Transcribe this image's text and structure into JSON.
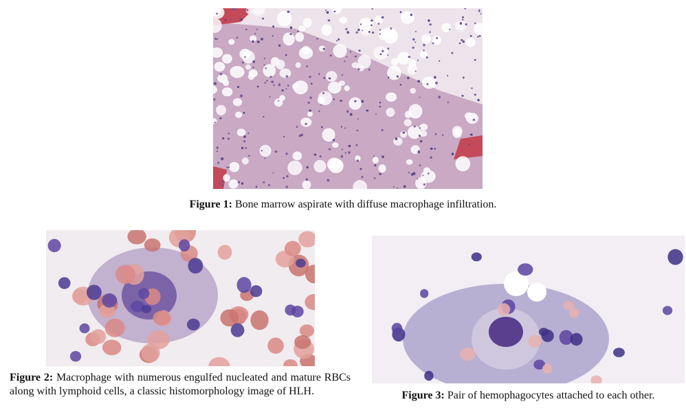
{
  "figures": [
    {
      "label": "Figure 1:",
      "caption": "Bone marrow aspirate with diffuse macrophage infiltration."
    },
    {
      "label": "Figure 2:",
      "caption": "Macrophage with numerous engulfed nucleated and mature RBCs along with lymphoid cells, a classic histomorphology image of HLH."
    },
    {
      "label": "Figure 3:",
      "caption": "Pair of hemophagocytes attached to each other."
    }
  ]
}
